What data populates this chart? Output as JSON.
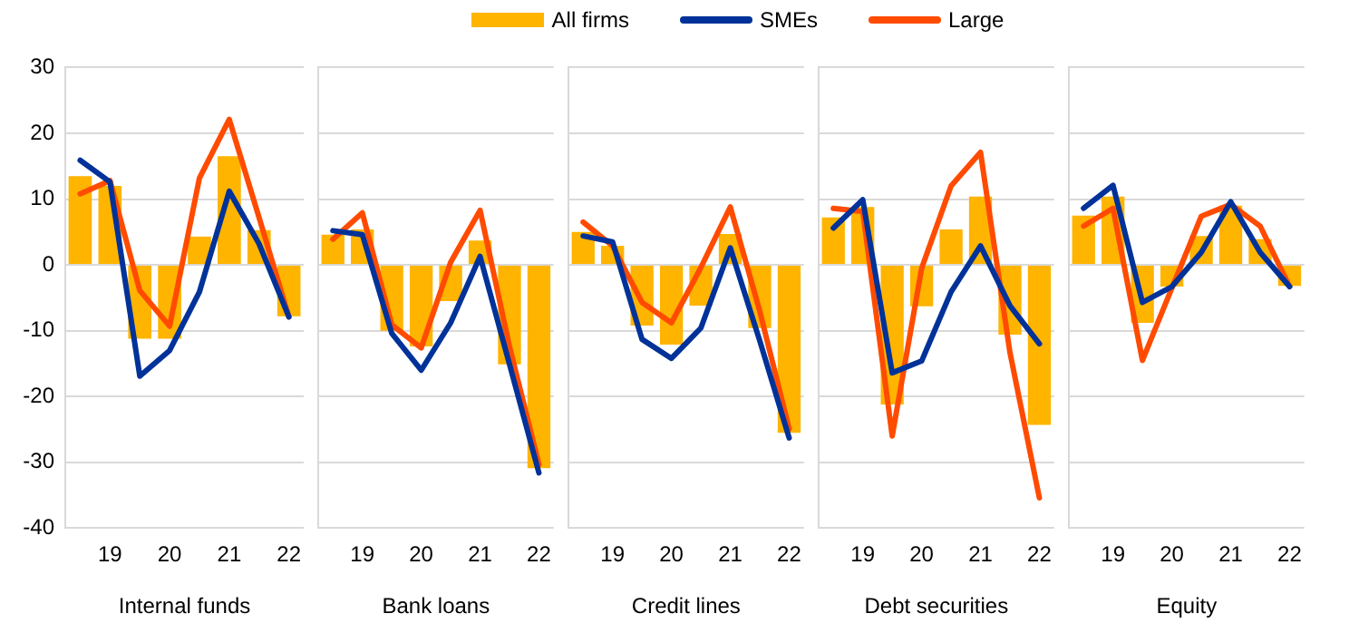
{
  "chart_data": [
    {
      "type": "bar",
      "xlabel": "Internal funds",
      "categories": [
        null,
        "19",
        null,
        "20",
        null,
        "21",
        null,
        "22"
      ],
      "ylim": [
        -40,
        30
      ],
      "yticks": [
        -40,
        -30,
        -20,
        -10,
        0,
        10,
        20,
        30
      ],
      "grid": "y",
      "legend": "top",
      "marker": "none",
      "line_style": "solid",
      "series": [
        {
          "name": "All firms",
          "color": "#ffb400",
          "values": [
            13.5,
            12,
            -11.2,
            -11.2,
            4.3,
            16.5,
            5.3,
            -7.8
          ]
        },
        {
          "name": "SMEs",
          "type": "line",
          "color": "#003299",
          "values": [
            15.9,
            12.6,
            -16.9,
            -13,
            -4.1,
            11.2,
            3.2,
            -7.9
          ]
        },
        {
          "name": "Large",
          "type": "line",
          "color": "#ff4b00",
          "values": [
            10.8,
            12.8,
            -3.9,
            -9.3,
            13.2,
            22.1,
            7.2,
            -7.9
          ]
        }
      ]
    },
    {
      "type": "bar",
      "xlabel": "Bank loans",
      "categories": [
        null,
        "19",
        null,
        "20",
        null,
        "21",
        null,
        "22"
      ],
      "ylim": [
        -40,
        30
      ],
      "yticks": [
        -40,
        -30,
        -20,
        -10,
        0,
        10,
        20,
        30
      ],
      "tick_labels": "x",
      "grid": "y",
      "marker": "none",
      "line_style": "solid",
      "series": [
        {
          "color": "#ffb400",
          "values": [
            4.6,
            5.4,
            -10,
            -12.4,
            -5.5,
            3.7,
            -15.1,
            -30.9
          ]
        },
        {
          "type": "line",
          "color": "#003299",
          "values": [
            5.2,
            4.6,
            -10.4,
            -16,
            -8.8,
            1.3,
            -15.1,
            -31.6
          ]
        },
        {
          "type": "line",
          "color": "#ff4b00",
          "values": [
            3.9,
            7.9,
            -9.1,
            -12.6,
            0.4,
            8.3,
            -12.4,
            -30.3
          ]
        }
      ]
    },
    {
      "type": "bar",
      "xlabel": "Credit lines",
      "categories": [
        null,
        "19",
        null,
        "20",
        null,
        "21",
        null,
        "22"
      ],
      "ylim": [
        -40,
        30
      ],
      "yticks": [
        -40,
        -30,
        -20,
        -10,
        0,
        10,
        20,
        30
      ],
      "tick_labels": "x",
      "grid": "y",
      "marker": "none",
      "line_style": "solid",
      "series": [
        {
          "color": "#ffb400",
          "values": [
            5,
            2.9,
            -9.2,
            -12.1,
            -6.2,
            4.7,
            -9.6,
            -25.5
          ]
        },
        {
          "type": "line",
          "color": "#003299",
          "values": [
            4.4,
            3.5,
            -11.3,
            -14.2,
            -9.6,
            2.6,
            -11.5,
            -26.3
          ]
        },
        {
          "type": "line",
          "color": "#ff4b00",
          "values": [
            6.5,
            2.9,
            -5.7,
            -8.8,
            -0.4,
            8.8,
            -7,
            -24.9
          ]
        }
      ]
    },
    {
      "type": "bar",
      "xlabel": "Debt securities",
      "categories": [
        null,
        "19",
        null,
        "20",
        null,
        "21",
        null,
        "22"
      ],
      "ylim": [
        -40,
        30
      ],
      "yticks": [
        -40,
        -30,
        -20,
        -10,
        0,
        10,
        20,
        30
      ],
      "tick_labels": "x",
      "grid": "y",
      "marker": "none",
      "line_style": "solid",
      "series": [
        {
          "color": "#ffb400",
          "values": [
            7.2,
            8.8,
            -21.2,
            -6.3,
            5.4,
            10.4,
            -10.6,
            -24.3
          ]
        },
        {
          "type": "line",
          "color": "#003299",
          "values": [
            5.6,
            9.9,
            -16.4,
            -14.6,
            -4.1,
            2.9,
            -6.2,
            -12
          ]
        },
        {
          "type": "line",
          "color": "#ff4b00",
          "values": [
            8.6,
            8.1,
            -26,
            -0.5,
            12,
            17.1,
            -13.3,
            -35.4
          ]
        }
      ]
    },
    {
      "type": "bar",
      "xlabel": "Equity",
      "categories": [
        null,
        "19",
        null,
        "20",
        null,
        "21",
        null,
        "22"
      ],
      "ylim": [
        -40,
        30
      ],
      "yticks": [
        -40,
        -30,
        -20,
        -10,
        0,
        10,
        20,
        30
      ],
      "tick_labels": "x",
      "grid": "y",
      "marker": "none",
      "line_style": "solid",
      "series": [
        {
          "color": "#ffb400",
          "values": [
            7.5,
            10.4,
            -8.8,
            -3.3,
            4.4,
            9,
            3.9,
            -3.2
          ]
        },
        {
          "type": "line",
          "color": "#003299",
          "values": [
            8.6,
            12.1,
            -5.7,
            -3.3,
            1.9,
            9.6,
            1.9,
            -3.3
          ]
        },
        {
          "type": "line",
          "color": "#ff4b00",
          "values": [
            5.9,
            8.6,
            -14.5,
            -3.5,
            7.4,
            9.2,
            5.9,
            -3.3
          ]
        }
      ]
    }
  ]
}
